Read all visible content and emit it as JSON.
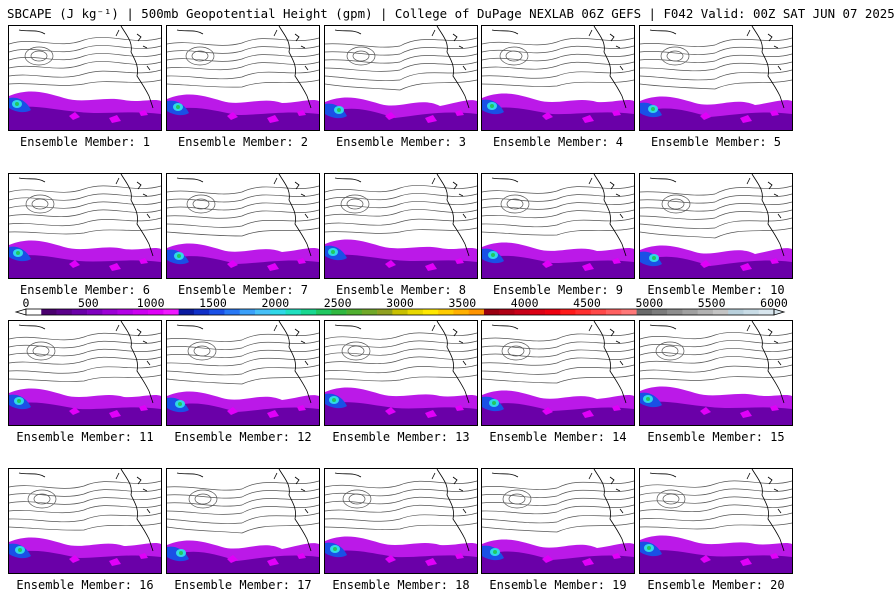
{
  "header": {
    "title": "SBCAPE (J kg⁻¹) | 500mb Geopotential Height (gpm) | College of DuPage NEXLAB 06Z GEFS | F042 Valid: 00Z SAT JUN 07 2025"
  },
  "panels": [
    {
      "caption": "Ensemble Member: 1"
    },
    {
      "caption": "Ensemble Member: 2"
    },
    {
      "caption": "Ensemble Member: 3"
    },
    {
      "caption": "Ensemble Member: 4"
    },
    {
      "caption": "Ensemble Member: 5"
    },
    {
      "caption": "Ensemble Member: 6"
    },
    {
      "caption": "Ensemble Member: 7"
    },
    {
      "caption": "Ensemble Member: 8"
    },
    {
      "caption": "Ensemble Member: 9"
    },
    {
      "caption": "Ensemble Member: 10"
    },
    {
      "caption": "Ensemble Member: 11"
    },
    {
      "caption": "Ensemble Member: 12"
    },
    {
      "caption": "Ensemble Member: 13"
    },
    {
      "caption": "Ensemble Member: 14"
    },
    {
      "caption": "Ensemble Member: 15"
    },
    {
      "caption": "Ensemble Member: 16"
    },
    {
      "caption": "Ensemble Member: 17"
    },
    {
      "caption": "Ensemble Member: 18"
    },
    {
      "caption": "Ensemble Member: 19"
    },
    {
      "caption": "Ensemble Member: 20"
    }
  ],
  "colorbar": {
    "labels": [
      "0",
      "500",
      "1000",
      "1500",
      "2000",
      "2500",
      "3000",
      "3500",
      "4000",
      "4500",
      "5000",
      "5500",
      "6000"
    ],
    "colors": [
      "#ffffff",
      "#4a006e",
      "#5a008a",
      "#6a00a8",
      "#8000c0",
      "#9c00d6",
      "#b400e6",
      "#cc00f0",
      "#e000f8",
      "#f018ff",
      "#0a1aa0",
      "#1030c8",
      "#1a50e6",
      "#2878f5",
      "#3aa0fa",
      "#46c0f8",
      "#30d8e8",
      "#20e0c0",
      "#18d890",
      "#20c860",
      "#30b840",
      "#50b030",
      "#70a828",
      "#90a020",
      "#c8c000",
      "#e8d800",
      "#ffe800",
      "#ffcc00",
      "#ffb000",
      "#ff9400",
      "#9a0010",
      "#b00014",
      "#c80018",
      "#dc0014",
      "#ee0010",
      "#ff1a1a",
      "#ff3030",
      "#ff4848",
      "#ff6060",
      "#ff7878",
      "#6a6a6a",
      "#7c7c7c",
      "#8e8e8e",
      "#a0a0a0",
      "#b2b2b2",
      "#c4c4c4",
      "#b8d0dc",
      "#c8dce6",
      "#d8e6ee"
    ]
  }
}
